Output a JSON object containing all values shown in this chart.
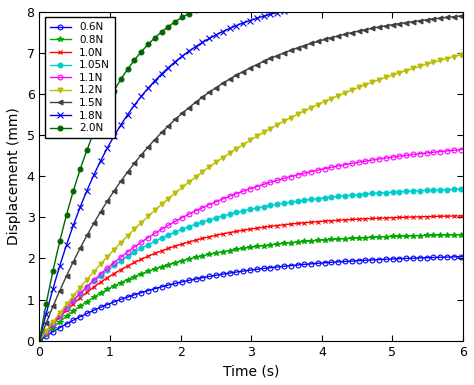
{
  "title": "",
  "xlabel": "Time (s)",
  "ylabel": "Displacement (mm)",
  "xlim": [
    0,
    6
  ],
  "ylim": [
    0,
    8
  ],
  "xticks": [
    0,
    1,
    2,
    3,
    4,
    5,
    6
  ],
  "yticks": [
    0,
    1,
    2,
    3,
    4,
    5,
    6,
    7,
    8
  ],
  "series": [
    {
      "label": "0.6N",
      "color": "#0000FF",
      "marker": "o",
      "markerfacecolor": "none",
      "markersize": 3.5,
      "plateau": 2.12,
      "tau": 1.8
    },
    {
      "label": "0.8N",
      "color": "#00AA00",
      "marker": "*",
      "markerfacecolor": "#00AA00",
      "markersize": 4,
      "plateau": 2.63,
      "tau": 1.5
    },
    {
      "label": "1.0N",
      "color": "#FF0000",
      "marker": "x",
      "markerfacecolor": "#FF0000",
      "markersize": 3.5,
      "plateau": 3.08,
      "tau": 1.4
    },
    {
      "label": "1.05N",
      "color": "#00CCCC",
      "marker": "o",
      "markerfacecolor": "#00CCCC",
      "markersize": 3.5,
      "plateau": 3.78,
      "tau": 1.6
    },
    {
      "label": "1.1N",
      "color": "#FF00FF",
      "marker": "o",
      "markerfacecolor": "none",
      "markersize": 3.5,
      "plateau": 4.98,
      "tau": 2.2
    },
    {
      "label": "1.2N",
      "color": "#BBBB00",
      "marker": "v",
      "markerfacecolor": "#BBBB00",
      "markersize": 3.5,
      "plateau": 8.5,
      "tau": 3.5
    },
    {
      "label": "1.5N",
      "color": "#404040",
      "marker": "<",
      "markerfacecolor": "#404040",
      "markersize": 3.5,
      "plateau": 8.2,
      "tau": 1.8
    },
    {
      "label": "1.8N",
      "color": "#0000EE",
      "marker": "x",
      "markerfacecolor": "#0000EE",
      "markersize": 4,
      "plateau": 8.5,
      "tau": 1.2
    },
    {
      "label": "2.0N",
      "color": "#006600",
      "marker": "o",
      "markerfacecolor": "#006600",
      "markersize": 3.5,
      "plateau": 8.8,
      "tau": 0.9
    }
  ],
  "figsize": [
    4.74,
    3.85
  ],
  "dpi": 100
}
